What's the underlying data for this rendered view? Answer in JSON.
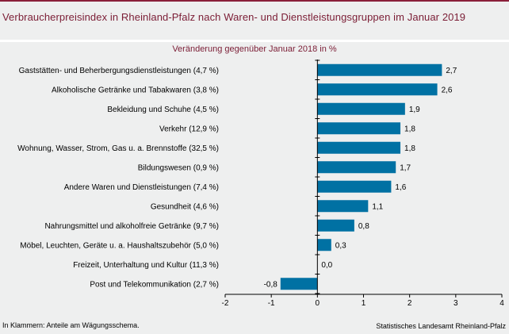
{
  "header": {
    "title": "Verbraucherpreisindex in Rheinland-Pfalz nach Waren- und Dienstleistungsgruppen im Januar 2019",
    "subtitle": "Veränderung gegenüber Januar 2018 in %"
  },
  "footer": {
    "note": "In Klammern: Anteile am Wägungsschema.",
    "source": "Statistisches Landesamt Rheinland-Pfalz"
  },
  "chart_data": {
    "type": "bar",
    "orientation": "horizontal",
    "title": "Verbraucherpreisindex in Rheinland-Pfalz nach Waren- und Dienstleistungsgruppen im Januar 2019",
    "subtitle": "Veränderung gegenüber Januar 2018 in %",
    "xlabel": "",
    "ylabel": "",
    "xlim": [
      -2,
      4
    ],
    "xticks": [
      -2,
      -1,
      0,
      1,
      2,
      3,
      4
    ],
    "xtick_labels": [
      "-2",
      "-1",
      "0",
      "1",
      "2",
      "3",
      "4"
    ],
    "grid": false,
    "bar_color": "#0071a3",
    "categories": [
      "Gaststätten- und Beherbergungsdienstleistungen (4,7 %)",
      "Alkoholische Getränke und Tabakwaren (3,8 %)",
      "Bekleidung und Schuhe (4,5 %)",
      "Verkehr (12,9 %)",
      "Wohnung, Wasser, Strom, Gas u. a. Brennstoffe (32,5 %)",
      "Bildungswesen (0,9 %)",
      "Andere Waren und Dienstleistungen (7,4 %)",
      "Gesundheit (4,6 %)",
      "Nahrungsmittel und alkoholfreie Getränke (9,7 %)",
      "Möbel, Leuchten, Geräte u. a. Haushaltszubehör (5,0 %)",
      "Freizeit, Unterhaltung und Kultur (11,3 %)",
      "Post und Telekommunikation (2,7 %)"
    ],
    "values": [
      2.7,
      2.6,
      1.9,
      1.8,
      1.8,
      1.7,
      1.6,
      1.1,
      0.8,
      0.3,
      0.0,
      -0.8
    ],
    "value_labels": [
      "2,7",
      "2,6",
      "1,9",
      "1,8",
      "1,8",
      "1,7",
      "1,6",
      "1,1",
      "0,8",
      "0,3",
      "0,0",
      "-0,8"
    ]
  }
}
